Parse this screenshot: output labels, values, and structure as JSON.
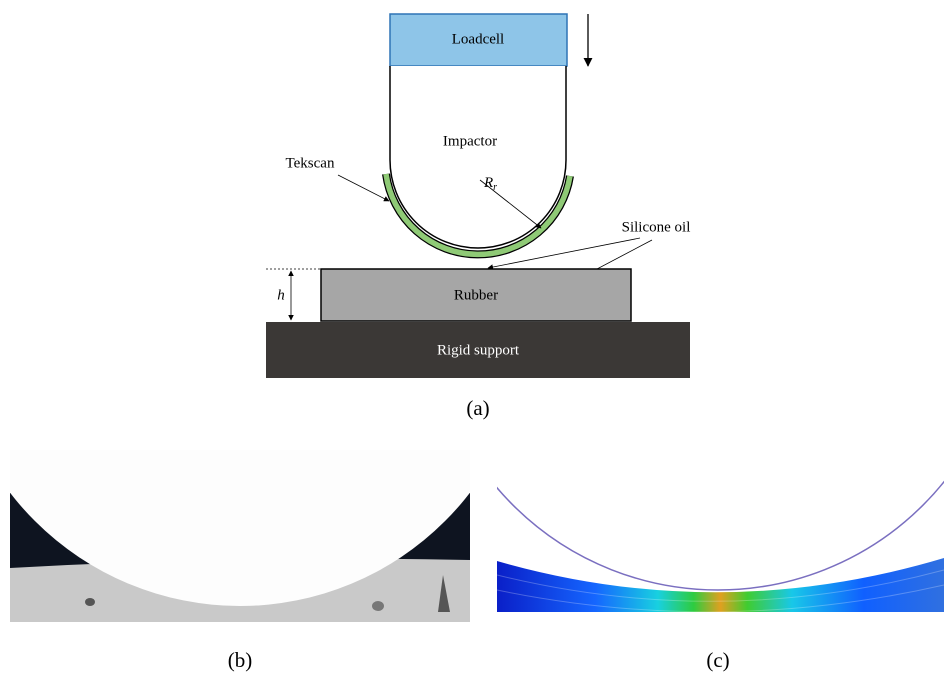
{
  "panel_a": {
    "loadcell": "Loadcell",
    "impactor": "Impactor",
    "tekscan": "Tekscan",
    "radius": {
      "symbol": "R",
      "subscript": "r"
    },
    "silicone_oil": "Silicone oil",
    "height": "h",
    "rubber": "Rubber",
    "rigid_support": "Rigid support",
    "caption": "(a)"
  },
  "panel_b": {
    "caption": "(b)"
  },
  "panel_c": {
    "caption": "(c)"
  }
}
